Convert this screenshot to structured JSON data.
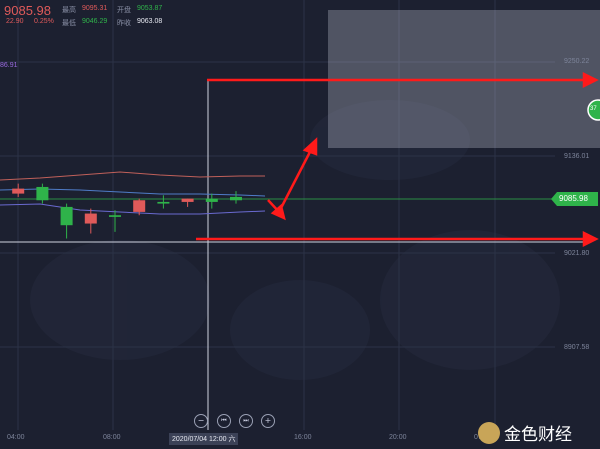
{
  "header": {
    "last_price": "9085.98",
    "change": "22.90",
    "change_pct": "0.25%",
    "high_label": "最高",
    "high_value": "9095.31",
    "low_label": "最低",
    "low_value": "9046.29",
    "open_label": "开盘",
    "open_value": "9053.87",
    "prev_close_label": "昨收",
    "prev_close_value": "9063.08",
    "left_marker": "86.91"
  },
  "price_axis": {
    "ticks": [
      "9250.22",
      "9136.01",
      "9021.80",
      "8907.58"
    ],
    "current_price_tag": "9085.98",
    "marker_bubble": "37"
  },
  "time_axis": {
    "ticks": [
      "04:00",
      "08:00",
      "16:00",
      "20:00",
      "07/0"
    ],
    "crosshair_label": "2020/07/04 12:00 六"
  },
  "controls": {
    "zoom_out": "−",
    "prev": "⏮",
    "next": "⏭",
    "zoom_in": "+"
  },
  "watermark": {
    "text": "金色财经"
  },
  "colors": {
    "up": "#e05a5a",
    "down": "#2fb34a",
    "arrow": "#ff1a1a",
    "ma_upper": "#c0605a",
    "ma_lower": "#6a6ad0",
    "ma_mid": "#4f7cc8"
  },
  "chart_data": {
    "type": "candlestick",
    "y_axis_ticks": [
      9250.22,
      9136.01,
      9021.8,
      8907.58
    ],
    "current_price": 9085.98,
    "candles": [
      {
        "open": 9090,
        "high": 9100,
        "low": 9078,
        "close": 9082
      },
      {
        "open": 9092,
        "high": 9104,
        "low": 9088,
        "close": 9098
      },
      {
        "open": 9100,
        "high": 9104,
        "low": 9080,
        "close": 9084
      },
      {
        "open": 9076,
        "high": 9080,
        "low": 9038,
        "close": 9054
      },
      {
        "open": 9056,
        "high": 9074,
        "low": 9044,
        "close": 9068
      },
      {
        "open": 9066,
        "high": 9072,
        "low": 9046,
        "close": 9064
      },
      {
        "open": 9070,
        "high": 9086,
        "low": 9066,
        "close": 9084
      },
      {
        "open": 9082,
        "high": 9090,
        "low": 9074,
        "close": 9080
      },
      {
        "open": 9082,
        "high": 9086,
        "low": 9076,
        "close": 9086
      },
      {
        "open": 9086,
        "high": 9092,
        "low": 9074,
        "close": 9082
      },
      {
        "open": 9088,
        "high": 9095,
        "low": 9080,
        "close": 9084
      }
    ]
  }
}
